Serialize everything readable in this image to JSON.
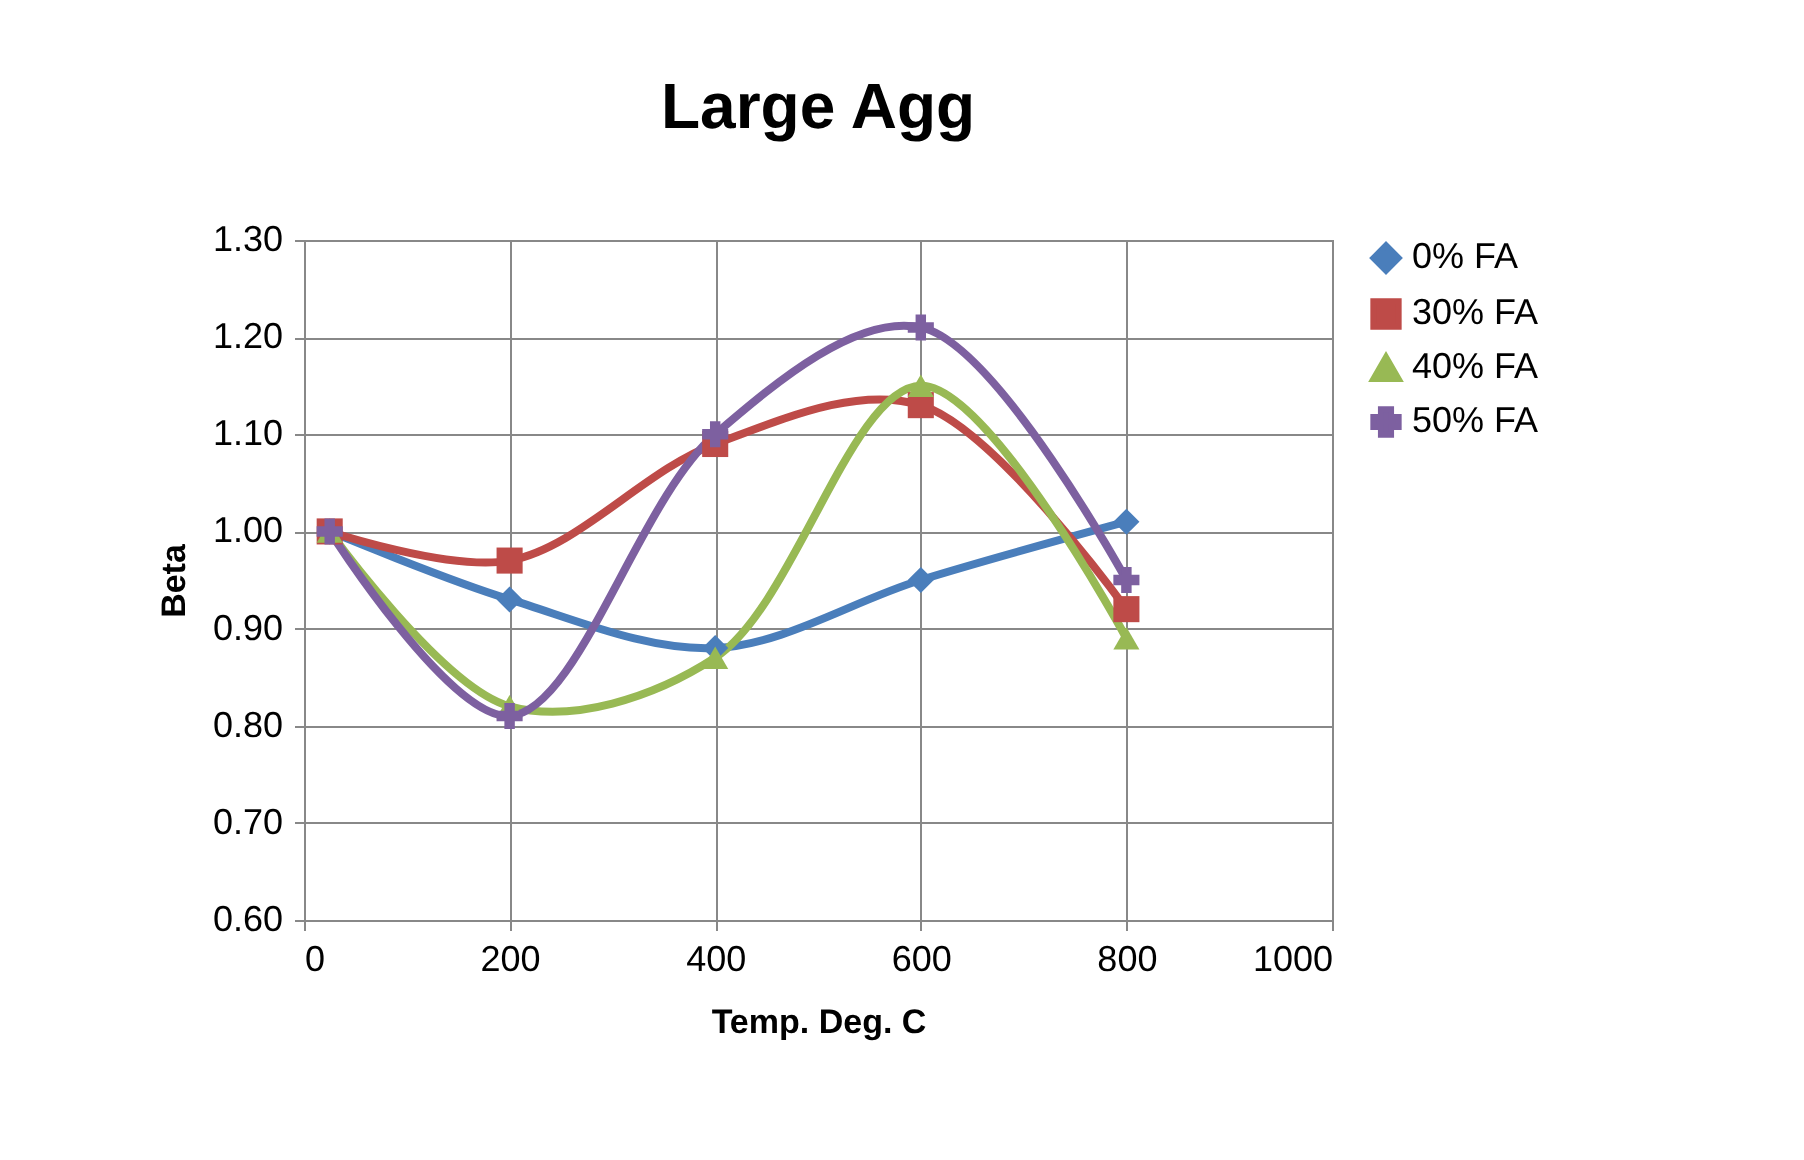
{
  "chart_data": {
    "type": "line",
    "title": "Large Agg",
    "xlabel": "Temp. Deg. C",
    "ylabel": "Beta",
    "x": [
      25,
      200,
      400,
      600,
      800
    ],
    "series": [
      {
        "name": "0% FA",
        "color": "#4a7ebb",
        "marker": "diamond",
        "values": [
          1.0,
          0.93,
          0.88,
          0.95,
          1.01
        ]
      },
      {
        "name": "30% FA",
        "color": "#be4b48",
        "marker": "square",
        "values": [
          1.0,
          0.97,
          1.09,
          1.13,
          0.92
        ]
      },
      {
        "name": "40% FA",
        "color": "#98b954",
        "marker": "triangle",
        "values": [
          1.0,
          0.82,
          0.87,
          1.15,
          0.89
        ]
      },
      {
        "name": "50% FA",
        "color": "#7d60a0",
        "marker": "cross",
        "values": [
          1.0,
          0.81,
          1.1,
          1.21,
          0.95
        ]
      }
    ],
    "xlim": [
      0,
      1000
    ],
    "xticks": [
      0,
      200,
      400,
      600,
      800,
      1000
    ],
    "ylim": [
      0.6,
      1.3
    ],
    "yticks": [
      {
        "value": 0.6,
        "label": "0.60"
      },
      {
        "value": 0.7,
        "label": "0.70"
      },
      {
        "value": 0.8,
        "label": "0.80"
      },
      {
        "value": 0.9,
        "label": "0.90"
      },
      {
        "value": 1.0,
        "label": "1.00"
      },
      {
        "value": 1.1,
        "label": "1.10"
      },
      {
        "value": 1.2,
        "label": "1.20"
      },
      {
        "value": 1.3,
        "label": "1.30"
      }
    ],
    "grid": true,
    "legend": "right",
    "line_style": "solid"
  }
}
